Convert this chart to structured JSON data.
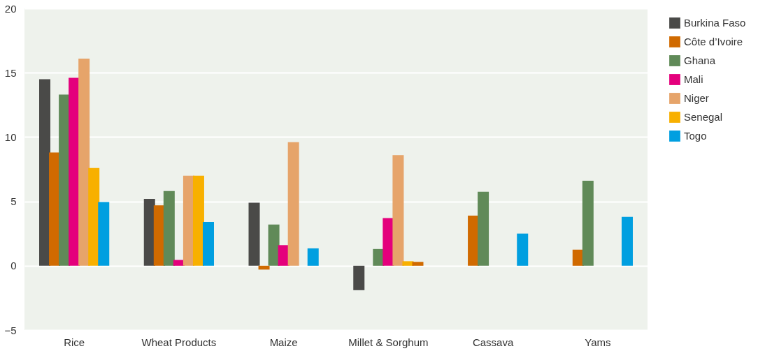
{
  "chart_data": {
    "type": "bar",
    "categories": [
      "Rice",
      "Wheat Products",
      "Maize",
      "Millet & Sorghum",
      "Cassava",
      "Yams"
    ],
    "series": [
      {
        "name": "Burkina Faso",
        "color": "#4a4a48",
        "values": [
          14.5,
          5.2,
          4.9,
          -1.9,
          null,
          null
        ]
      },
      {
        "name": "Côte d’Ivoire",
        "color": "#d06a00",
        "values": [
          8.8,
          4.7,
          -0.3,
          null,
          3.9,
          1.25
        ]
      },
      {
        "name": "Ghana",
        "color": "#608a58",
        "values": [
          13.3,
          5.8,
          3.2,
          1.3,
          5.75,
          6.6
        ]
      },
      {
        "name": "Mali",
        "color": "#e4007c",
        "values": [
          14.6,
          0.45,
          1.6,
          3.7,
          null,
          null
        ]
      },
      {
        "name": "Niger",
        "color": "#e6a46a",
        "values": [
          16.1,
          7.0,
          9.6,
          8.6,
          null,
          null
        ]
      },
      {
        "name": "Senegal",
        "color": "#f8b000",
        "values": [
          7.6,
          7.0,
          null,
          0.35,
          null,
          null
        ]
      },
      {
        "name": "Togo",
        "color": "#009fe0",
        "colors": [
          "#009fe0",
          "#009fe0",
          "#009fe0",
          "#d06a00",
          "#009fe0",
          "#009fe0"
        ],
        "values": [
          4.95,
          3.4,
          1.35,
          0.3,
          2.5,
          3.8
        ]
      }
    ],
    "ylim": [
      -5,
      20
    ],
    "yticks": [
      -5,
      0,
      5,
      10,
      15,
      20
    ],
    "grid": "y",
    "legend": "right"
  }
}
